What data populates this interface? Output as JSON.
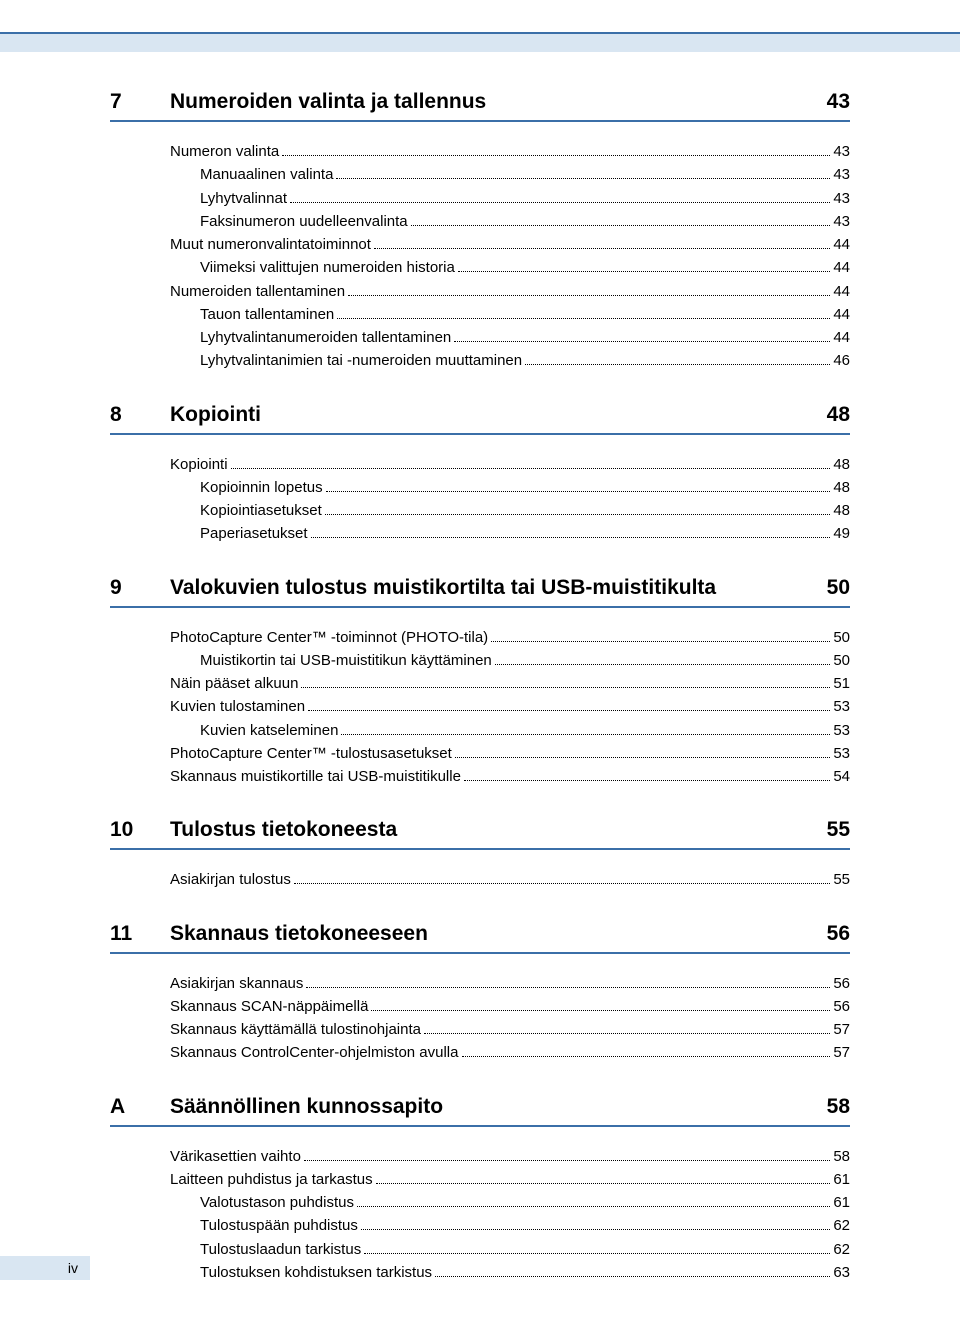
{
  "page_number": "iv",
  "colors": {
    "accent_blue": "#3b6fa8",
    "light_blue": "#d9e6f2",
    "text": "#000000",
    "background": "#ffffff"
  },
  "sections": [
    {
      "num": "7",
      "title": "Numeroiden valinta ja tallennus",
      "page": "43",
      "entries": [
        {
          "label": "Numeron valinta",
          "page": "43",
          "indent": 0
        },
        {
          "label": "Manuaalinen valinta",
          "page": "43",
          "indent": 1
        },
        {
          "label": "Lyhytvalinnat",
          "page": "43",
          "indent": 1
        },
        {
          "label": "Faksinumeron uudelleenvalinta",
          "page": "43",
          "indent": 1
        },
        {
          "label": "Muut numeronvalintatoiminnot",
          "page": "44",
          "indent": 0
        },
        {
          "label": "Viimeksi valittujen numeroiden historia",
          "page": "44",
          "indent": 1
        },
        {
          "label": "Numeroiden tallentaminen",
          "page": "44",
          "indent": 0
        },
        {
          "label": "Tauon tallentaminen",
          "page": "44",
          "indent": 1
        },
        {
          "label": "Lyhytvalintanumeroiden tallentaminen",
          "page": "44",
          "indent": 1
        },
        {
          "label": "Lyhytvalintanimien tai -numeroiden muuttaminen",
          "page": "46",
          "indent": 1
        }
      ]
    },
    {
      "num": "8",
      "title": "Kopiointi",
      "page": "48",
      "entries": [
        {
          "label": "Kopiointi",
          "page": "48",
          "indent": 0
        },
        {
          "label": "Kopioinnin lopetus",
          "page": "48",
          "indent": 1
        },
        {
          "label": "Kopiointiasetukset",
          "page": "48",
          "indent": 1
        },
        {
          "label": "Paperiasetukset",
          "page": "49",
          "indent": 1
        }
      ]
    },
    {
      "num": "9",
      "title": "Valokuvien tulostus muistikortilta tai USB-muistitikulta",
      "page": "50",
      "entries": [
        {
          "label": "PhotoCapture Center™ -toiminnot (PHOTO-tila)",
          "page": "50",
          "indent": 0
        },
        {
          "label": "Muistikortin tai USB-muistitikun käyttäminen",
          "page": "50",
          "indent": 1
        },
        {
          "label": "Näin pääset alkuun",
          "page": "51",
          "indent": 0
        },
        {
          "label": "Kuvien tulostaminen",
          "page": "53",
          "indent": 0
        },
        {
          "label": "Kuvien katseleminen",
          "page": "53",
          "indent": 1
        },
        {
          "label": "PhotoCapture Center™ -tulostusasetukset",
          "page": "53",
          "indent": 0
        },
        {
          "label": "Skannaus muistikortille tai USB-muistitikulle",
          "page": "54",
          "indent": 0
        }
      ]
    },
    {
      "num": "10",
      "title": "Tulostus tietokoneesta",
      "page": "55",
      "entries": [
        {
          "label": "Asiakirjan tulostus",
          "page": "55",
          "indent": 0
        }
      ]
    },
    {
      "num": "11",
      "title": "Skannaus tietokoneeseen",
      "page": "56",
      "entries": [
        {
          "label": "Asiakirjan skannaus",
          "page": "56",
          "indent": 0
        },
        {
          "label": "Skannaus SCAN-näppäimellä",
          "page": "56",
          "indent": 0
        },
        {
          "label": "Skannaus käyttämällä tulostinohjainta",
          "page": "57",
          "indent": 0
        },
        {
          "label": "Skannaus ControlCenter-ohjelmiston avulla",
          "page": "57",
          "indent": 0
        }
      ]
    },
    {
      "num": "A",
      "title": "Säännöllinen kunnossapito",
      "page": "58",
      "entries": [
        {
          "label": "Värikasettien vaihto",
          "page": "58",
          "indent": 0
        },
        {
          "label": "Laitteen puhdistus ja tarkastus",
          "page": "61",
          "indent": 0
        },
        {
          "label": "Valotustason puhdistus",
          "page": "61",
          "indent": 1
        },
        {
          "label": "Tulostuspään puhdistus",
          "page": "62",
          "indent": 1
        },
        {
          "label": "Tulostuslaadun tarkistus",
          "page": "62",
          "indent": 1
        },
        {
          "label": "Tulostuksen kohdistuksen tarkistus",
          "page": "63",
          "indent": 1
        }
      ]
    }
  ]
}
